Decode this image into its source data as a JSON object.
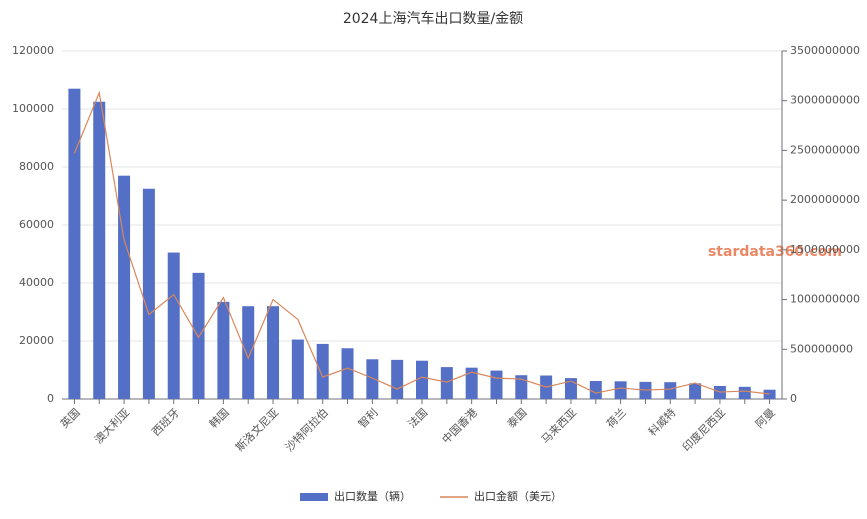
{
  "chart_data": {
    "type": "bar_line",
    "title": "2024上海汽车出口数量/金额",
    "watermark": "stardata360.com",
    "categories": [
      "英国",
      null,
      "澳大利亚",
      null,
      "西班牙",
      null,
      "韩国",
      null,
      "斯洛文尼亚",
      null,
      "沙特阿拉伯",
      null,
      "智利",
      null,
      "法国",
      null,
      "中国香港",
      null,
      "泰国",
      null,
      "马来西亚",
      null,
      "荷兰",
      null,
      "科威特",
      null,
      "印度尼西亚",
      null,
      "阿曼"
    ],
    "series": [
      {
        "name": "出口数量（辆）",
        "color": "#5470c6",
        "type": "bar",
        "axis": "y",
        "values": [
          107000,
          102500,
          77000,
          72500,
          50500,
          43500,
          33500,
          32000,
          32000,
          20500,
          19000,
          17500,
          13700,
          13500,
          13200,
          11000,
          10800,
          9800,
          8200,
          8100,
          7200,
          6200,
          6100,
          5900,
          5800,
          5400,
          4500,
          4200,
          3200
        ]
      },
      {
        "name": "出口金额（美元）",
        "color": "#d9875a",
        "type": "line",
        "axis": "y2",
        "values": [
          2470000000,
          3080000000,
          1600000000,
          850000000,
          1050000000,
          620000000,
          1020000000,
          410000000,
          1000000000,
          800000000,
          220000000,
          310000000,
          210000000,
          100000000,
          220000000,
          170000000,
          270000000,
          210000000,
          200000000,
          120000000,
          180000000,
          60000000,
          110000000,
          90000000,
          100000000,
          160000000,
          70000000,
          80000000,
          50000000
        ]
      }
    ],
    "ylim": [
      0,
      120000
    ],
    "yticks": [
      0,
      20000,
      40000,
      60000,
      80000,
      100000,
      120000
    ],
    "y2lim": [
      0,
      3500000000
    ],
    "y2ticks": [
      0,
      500000000,
      1000000000,
      1500000000,
      2000000000,
      2500000000,
      3000000000,
      3500000000
    ],
    "grid": true,
    "legend": "bottom"
  }
}
